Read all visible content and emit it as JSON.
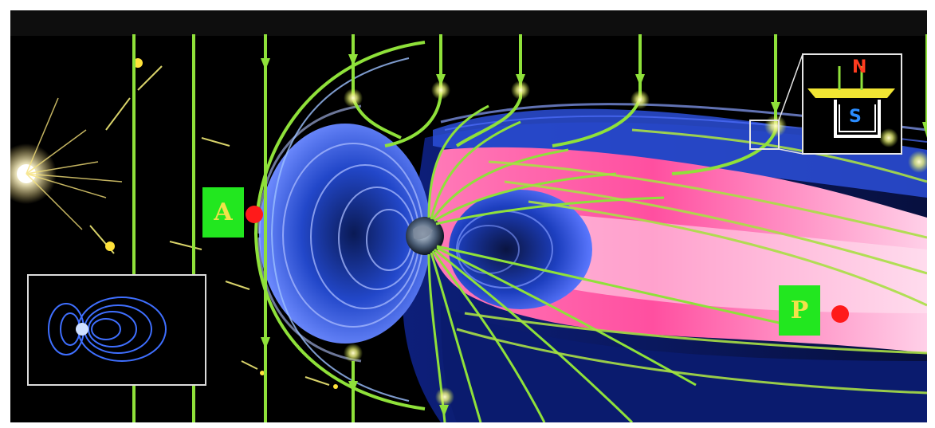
{
  "labels": {
    "point_a": "A",
    "point_p": "P",
    "magnet_north": "N",
    "magnet_south": "S"
  },
  "colors": {
    "background": "#000000",
    "field_line": "#8fe13a",
    "magnetosphere_blue": "#1d44c9",
    "plasma_pink": "#ff5aa8",
    "label_box": "#22e71f",
    "label_text": "#f2e24a",
    "marker": "#ff1a1a",
    "north_pole": "#ff3b1f",
    "south_pole": "#2a8cff"
  },
  "icons": {
    "sun": "sun-icon",
    "earth": "earth-icon",
    "inset_magnetic_field": "magnetic-field-inset-icon",
    "inset_conductor": "conductor-loop-inset-icon"
  }
}
